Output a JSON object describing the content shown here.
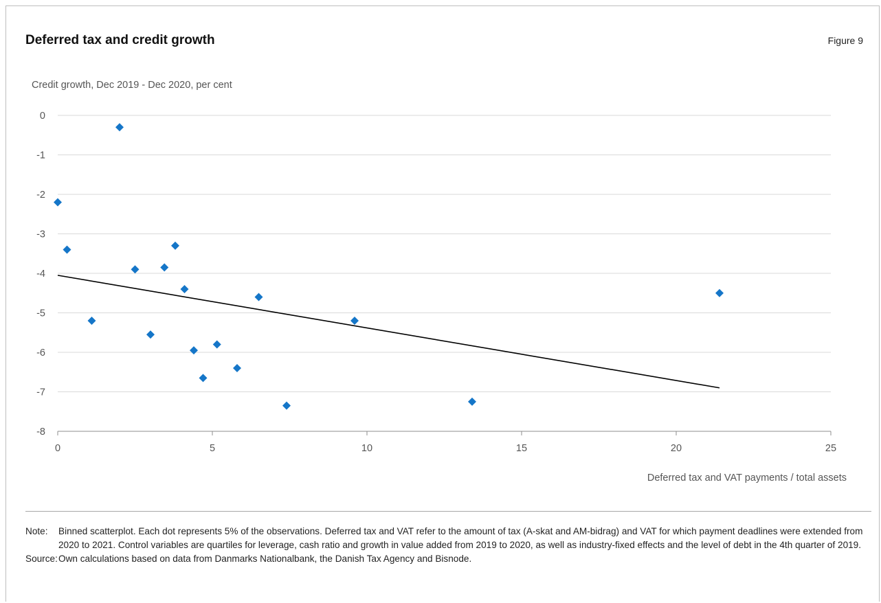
{
  "header": {
    "title": "Deferred tax and credit growth",
    "figure_label": "Figure 9"
  },
  "chart_data": {
    "type": "scatter",
    "title": "Deferred tax and credit growth",
    "ylabel": "Credit growth, Dec 2019 - Dec 2020, per cent",
    "xlabel": "Deferred tax and VAT payments / total assets",
    "xlim": [
      0,
      25
    ],
    "ylim": [
      -8,
      0
    ],
    "xticks": [
      0,
      5,
      10,
      15,
      20,
      25
    ],
    "yticks": [
      0,
      -1,
      -2,
      -3,
      -4,
      -5,
      -6,
      -7,
      -8
    ],
    "grid": "horizontal",
    "legend": "none",
    "marker_color": "#1576c8",
    "trend_color": "#000000",
    "points": [
      {
        "x": 0.0,
        "y": -2.2
      },
      {
        "x": 0.3,
        "y": -3.4
      },
      {
        "x": 1.1,
        "y": -5.2
      },
      {
        "x": 2.0,
        "y": -0.3
      },
      {
        "x": 2.5,
        "y": -3.9
      },
      {
        "x": 3.0,
        "y": -5.55
      },
      {
        "x": 3.45,
        "y": -3.85
      },
      {
        "x": 3.8,
        "y": -3.3
      },
      {
        "x": 4.1,
        "y": -4.4
      },
      {
        "x": 4.4,
        "y": -5.95
      },
      {
        "x": 4.7,
        "y": -6.65
      },
      {
        "x": 5.15,
        "y": -5.8
      },
      {
        "x": 5.8,
        "y": -6.4
      },
      {
        "x": 6.5,
        "y": -4.6
      },
      {
        "x": 7.4,
        "y": -7.35
      },
      {
        "x": 9.6,
        "y": -5.2
      },
      {
        "x": 13.4,
        "y": -7.25
      },
      {
        "x": 21.4,
        "y": -4.5
      }
    ],
    "trend_line": {
      "x": [
        0,
        21.4
      ],
      "y": [
        -4.05,
        -6.9
      ]
    }
  },
  "notes": {
    "note_key": "Note:",
    "note_text": "Binned scatterplot. Each dot represents 5% of the observations. Deferred tax and VAT refer to the amount of tax (A-skat and AM-bidrag) and VAT for which payment deadlines were extended from 2020 to 2021. Control variables are quartiles for leverage, cash ratio and growth in value added from 2019 to 2020, as well as industry-fixed effects and the level of debt in the 4th quarter of 2019.",
    "source_key": "Source:",
    "source_text": "Own calculations based on data from Danmarks Nationalbank, the Danish Tax Agency and Bisnode."
  }
}
